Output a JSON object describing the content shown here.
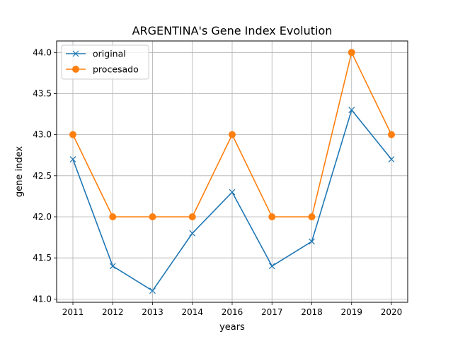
{
  "chart_data": {
    "type": "line",
    "title": "ARGENTINA's Gene Index Evolution",
    "xlabel": "years",
    "ylabel": "gene index",
    "categories": [
      "2011",
      "2012",
      "2013",
      "2014",
      "2016",
      "2017",
      "2018",
      "2019",
      "2020"
    ],
    "series": [
      {
        "name": "original",
        "values": [
          42.7,
          41.4,
          41.1,
          41.8,
          42.3,
          41.4,
          41.7,
          43.3,
          42.7
        ],
        "color": "#1f77b4",
        "marker": "x"
      },
      {
        "name": "procesado",
        "values": [
          43.0,
          42.0,
          42.0,
          42.0,
          43.0,
          42.0,
          42.0,
          44.0,
          43.0
        ],
        "color": "#ff7f0e",
        "marker": "circle"
      }
    ],
    "ylim": [
      40.96,
      44.14
    ],
    "yticks": [
      "41.0",
      "41.5",
      "42.0",
      "42.5",
      "43.0",
      "43.5",
      "44.0"
    ],
    "grid": true,
    "legend": "top-left"
  }
}
